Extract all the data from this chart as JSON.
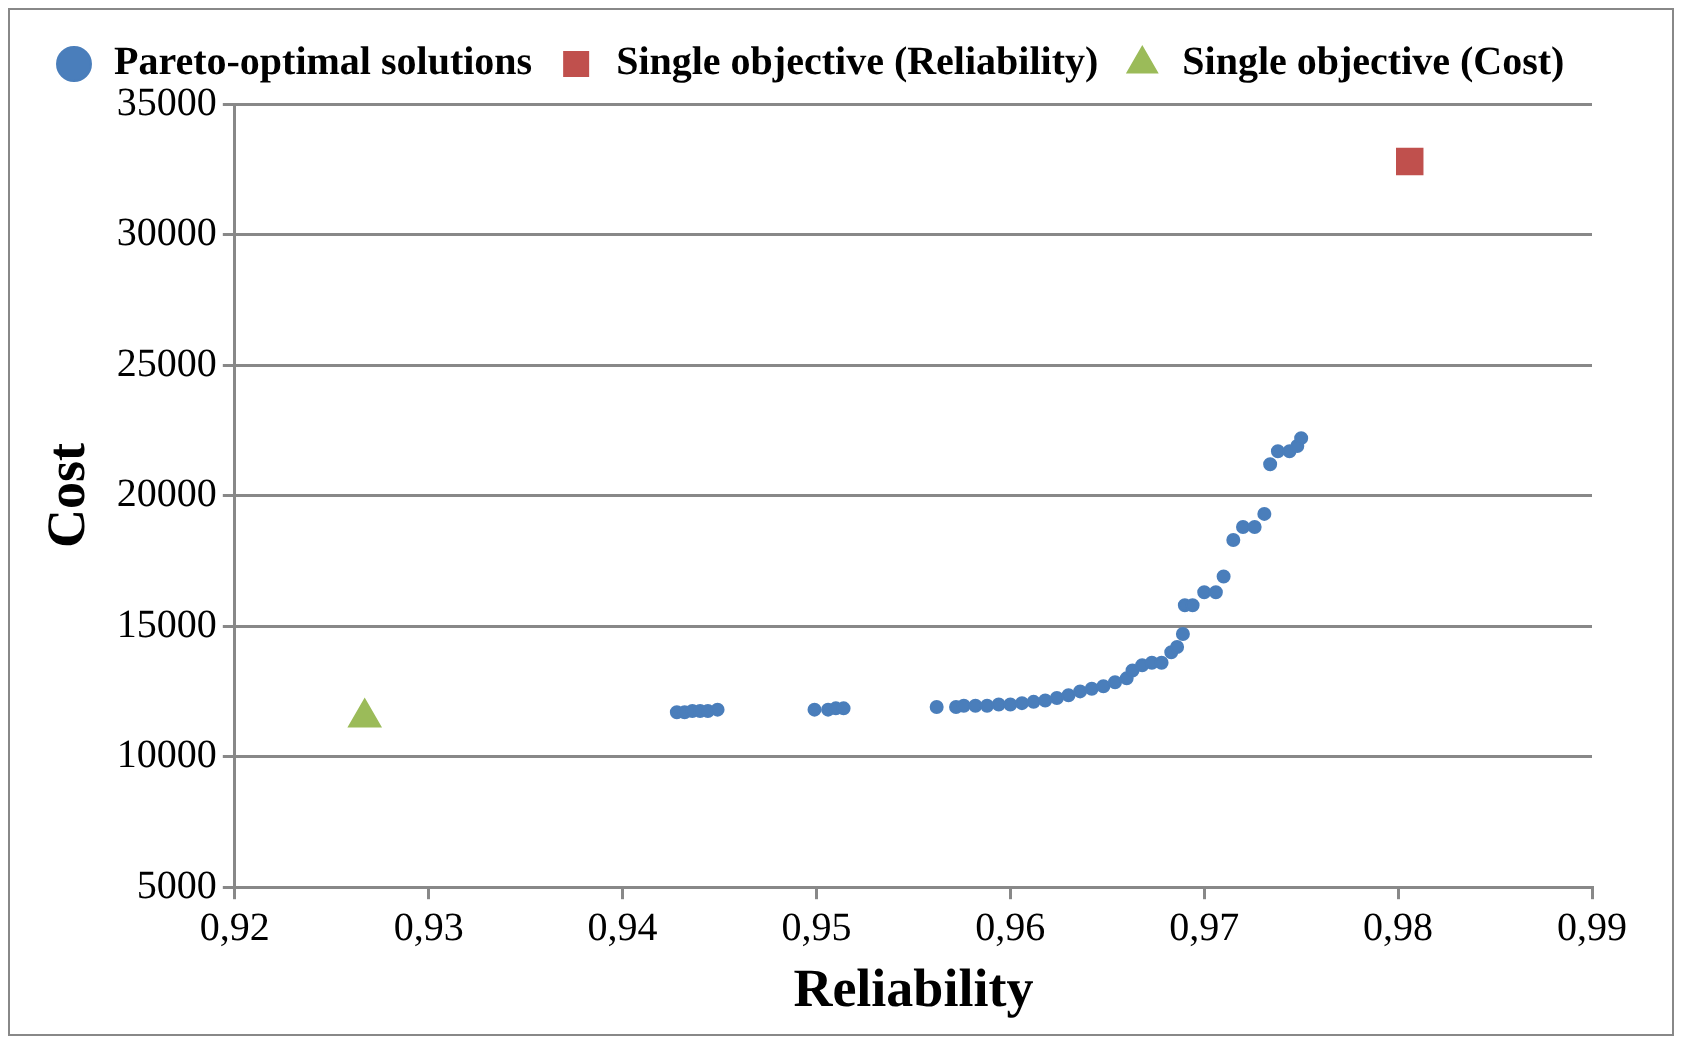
{
  "chart_data": {
    "type": "scatter",
    "xlabel": "Reliability",
    "ylabel": "Cost",
    "xlim": [
      0.92,
      0.99
    ],
    "xticks": [
      {
        "value": 0.92,
        "label": "0,92"
      },
      {
        "value": 0.93,
        "label": "0,93"
      },
      {
        "value": 0.94,
        "label": "0,94"
      },
      {
        "value": 0.95,
        "label": "0,95"
      },
      {
        "value": 0.96,
        "label": "0,96"
      },
      {
        "value": 0.97,
        "label": "0,97"
      },
      {
        "value": 0.98,
        "label": "0,98"
      },
      {
        "value": 0.99,
        "label": "0,99"
      }
    ],
    "ylim": [
      5000,
      35000
    ],
    "yticks": [
      5000,
      10000,
      15000,
      20000,
      25000,
      30000,
      35000
    ],
    "grid": "y",
    "legend": "top",
    "series": [
      {
        "name": "Pareto-optimal solutions",
        "color": "#4a7ebb",
        "marker": "circle",
        "x": [
          0.9428,
          0.9432,
          0.9436,
          0.944,
          0.9444,
          0.9449,
          0.9499,
          0.9506,
          0.951,
          0.9514,
          0.9562,
          0.9572,
          0.9576,
          0.9582,
          0.9588,
          0.9594,
          0.96,
          0.9606,
          0.9612,
          0.9618,
          0.9624,
          0.963,
          0.9636,
          0.9642,
          0.9648,
          0.9654,
          0.966,
          0.9663,
          0.9668,
          0.9673,
          0.9678,
          0.9683,
          0.9686,
          0.9689,
          0.969,
          0.9694,
          0.97,
          0.9706,
          0.971,
          0.9715,
          0.972,
          0.9726,
          0.9731,
          0.9734,
          0.9738,
          0.9744,
          0.9748,
          0.975
        ],
        "values": [
          11700,
          11700,
          11750,
          11750,
          11750,
          11800,
          11800,
          11800,
          11850,
          11850,
          11900,
          11900,
          11950,
          11950,
          11950,
          12000,
          12000,
          12050,
          12100,
          12150,
          12250,
          12350,
          12500,
          12600,
          12700,
          12850,
          13000,
          13300,
          13500,
          13600,
          13600,
          14000,
          14200,
          14700,
          15800,
          15800,
          16300,
          16300,
          16900,
          18300,
          18800,
          18800,
          19300,
          21200,
          21700,
          21700,
          21900,
          22200
        ]
      },
      {
        "name": "Single objective (Reliability)",
        "color": "#c0504d",
        "marker": "square",
        "x": [
          0.9806
        ],
        "values": [
          32800
        ]
      },
      {
        "name": "Single objective (Cost)",
        "color": "#9bbb59",
        "marker": "triangle",
        "x": [
          0.9267
        ],
        "values": [
          11500
        ]
      }
    ]
  }
}
